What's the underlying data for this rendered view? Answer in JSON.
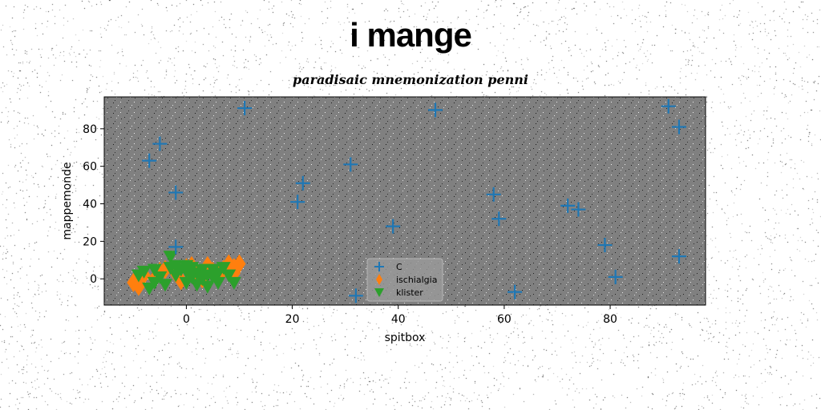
{
  "chart_data": {
    "type": "scatter",
    "title": "i mange",
    "subtitle": "paradisaic mnemonization penni",
    "xlabel": "spitbox",
    "ylabel": "mappemonde",
    "xlim": [
      -15.5,
      98
    ],
    "ylim": [
      -14,
      97
    ],
    "xticks": [
      0,
      20,
      40,
      60,
      80
    ],
    "yticks": [
      0,
      20,
      40,
      60,
      80
    ],
    "grid": false,
    "legend_position": "lower-center",
    "background": "#808080",
    "series": [
      {
        "name": "C",
        "marker": "plus",
        "color": "#1f77b4",
        "points": [
          [
            11,
            91
          ],
          [
            47,
            90
          ],
          [
            91,
            92
          ],
          [
            93,
            81
          ],
          [
            -5,
            72
          ],
          [
            -7,
            63
          ],
          [
            -2,
            46
          ],
          [
            22,
            51
          ],
          [
            31,
            61
          ],
          [
            21,
            41
          ],
          [
            58,
            45
          ],
          [
            59,
            32
          ],
          [
            72,
            39
          ],
          [
            74,
            37
          ],
          [
            39,
            28
          ],
          [
            79,
            18
          ],
          [
            -2,
            17
          ],
          [
            93,
            12
          ],
          [
            81,
            1
          ],
          [
            32,
            -9
          ],
          [
            62,
            -7
          ]
        ]
      },
      {
        "name": "ischialgia",
        "marker": "thin-diamond",
        "color": "#ff7f0e",
        "points": [
          [
            -10,
            -2
          ],
          [
            -9,
            -4
          ],
          [
            -8,
            2
          ],
          [
            -6,
            0
          ],
          [
            -4,
            5
          ],
          [
            -2,
            3
          ],
          [
            0,
            6
          ],
          [
            2,
            1
          ],
          [
            4,
            7
          ],
          [
            5,
            4
          ],
          [
            6,
            2
          ],
          [
            7,
            5
          ],
          [
            8,
            8
          ],
          [
            9,
            6
          ],
          [
            10,
            8
          ],
          [
            9,
            3
          ],
          [
            3,
            0
          ],
          [
            -1,
            -1
          ],
          [
            -5,
            4
          ],
          [
            1,
            7
          ]
        ]
      },
      {
        "name": "klister",
        "marker": "triangle-down",
        "color": "#2ca02c",
        "points": [
          [
            -9,
            2
          ],
          [
            -8,
            4
          ],
          [
            -7,
            -5
          ],
          [
            -6,
            5
          ],
          [
            -5,
            1
          ],
          [
            -4,
            -3
          ],
          [
            -3,
            6
          ],
          [
            -3,
            12
          ],
          [
            -2,
            2
          ],
          [
            -1,
            5
          ],
          [
            0,
            -2
          ],
          [
            0,
            4
          ],
          [
            1,
            1
          ],
          [
            1,
            6
          ],
          [
            2,
            -3
          ],
          [
            2,
            3
          ],
          [
            3,
            5
          ],
          [
            3,
            0
          ],
          [
            4,
            2
          ],
          [
            4,
            -4
          ],
          [
            5,
            5
          ],
          [
            5,
            1
          ],
          [
            6,
            -2
          ],
          [
            6,
            3
          ],
          [
            7,
            6
          ],
          [
            8,
            2
          ],
          [
            -6,
            -2
          ],
          [
            -2,
            7
          ],
          [
            0,
            7
          ],
          [
            9,
            -2
          ]
        ]
      }
    ]
  }
}
